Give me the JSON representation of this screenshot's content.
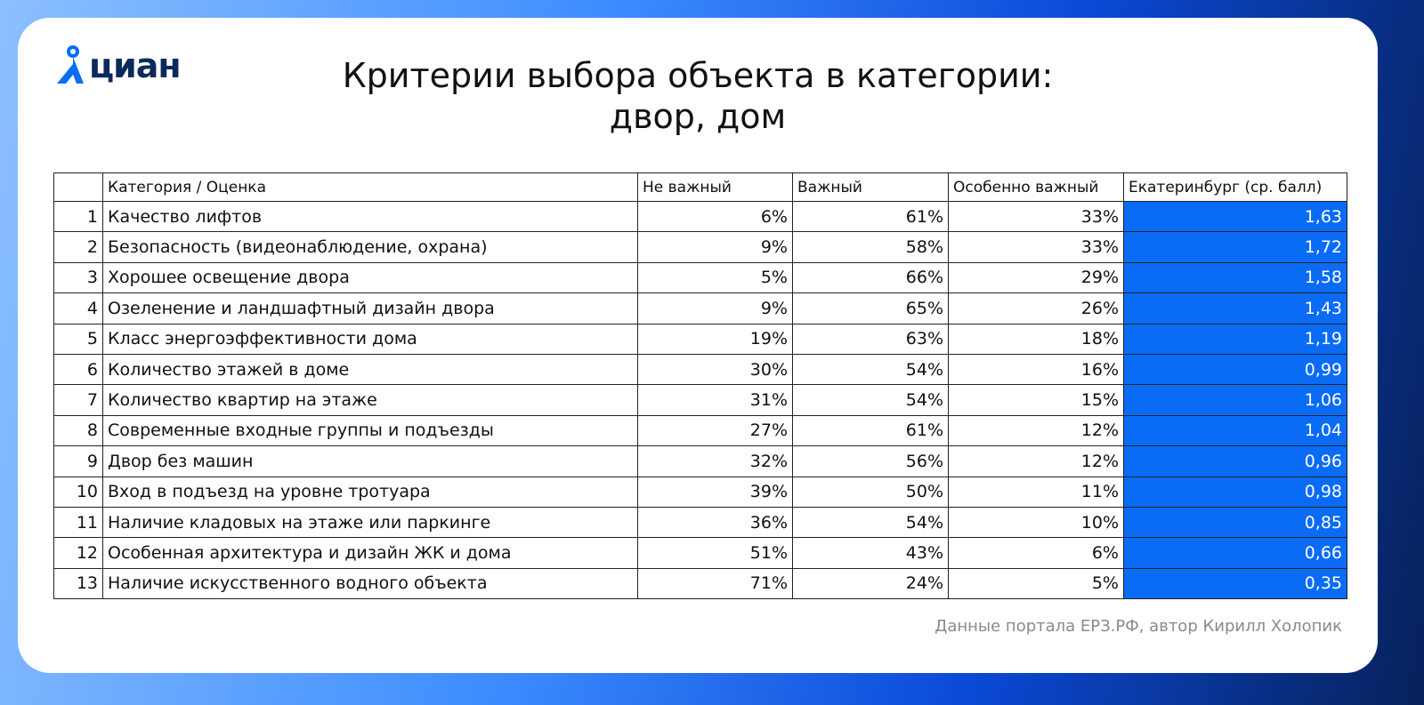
{
  "logo": {
    "text": "циан"
  },
  "header": {
    "title_line1": "Критерии выбора объекта в категории:",
    "title_line2": "двор, дом"
  },
  "table": {
    "columns": [
      "",
      "Категория / Оценка",
      "Не важный",
      "Важный",
      "Особенно важный",
      "Екатеринбург (ср. балл)"
    ],
    "rows": [
      [
        "1",
        "Качество лифтов",
        "6%",
        "61%",
        "33%",
        "1,63"
      ],
      [
        "2",
        "Безопасность (видеонаблюдение, охрана)",
        "9%",
        "58%",
        "33%",
        "1,72"
      ],
      [
        "3",
        "Хорошее освещение двора",
        "5%",
        "66%",
        "29%",
        "1,58"
      ],
      [
        "4",
        "Озеленение и ландшафтный дизайн двора",
        "9%",
        "65%",
        "26%",
        "1,43"
      ],
      [
        "5",
        "Класс энергоэффективности дома",
        "19%",
        "63%",
        "18%",
        "1,19"
      ],
      [
        "6",
        "Количество этажей в доме",
        "30%",
        "54%",
        "16%",
        "0,99"
      ],
      [
        "7",
        "Количество квартир на этаже",
        "31%",
        "54%",
        "15%",
        "1,06"
      ],
      [
        "8",
        "Современные входные группы и подъезды",
        "27%",
        "61%",
        "12%",
        "1,04"
      ],
      [
        "9",
        "Двор без машин",
        "32%",
        "56%",
        "12%",
        "0,96"
      ],
      [
        "10",
        "Вход в подъезд на уровне тротуара",
        "39%",
        "50%",
        "11%",
        "0,98"
      ],
      [
        "11",
        "Наличие кладовых на этаже или паркинге",
        "36%",
        "54%",
        "10%",
        "0,85"
      ],
      [
        "12",
        "Особенная архитектура и дизайн ЖК и дома",
        "51%",
        "43%",
        "6%",
        "0,66"
      ],
      [
        "13",
        "Наличие искусственного водного объекта",
        "71%",
        "24%",
        "5%",
        "0,35"
      ]
    ]
  },
  "footer": {
    "source": "Данные портала ЕРЗ.РФ, автор Кирилл Холопик"
  }
}
